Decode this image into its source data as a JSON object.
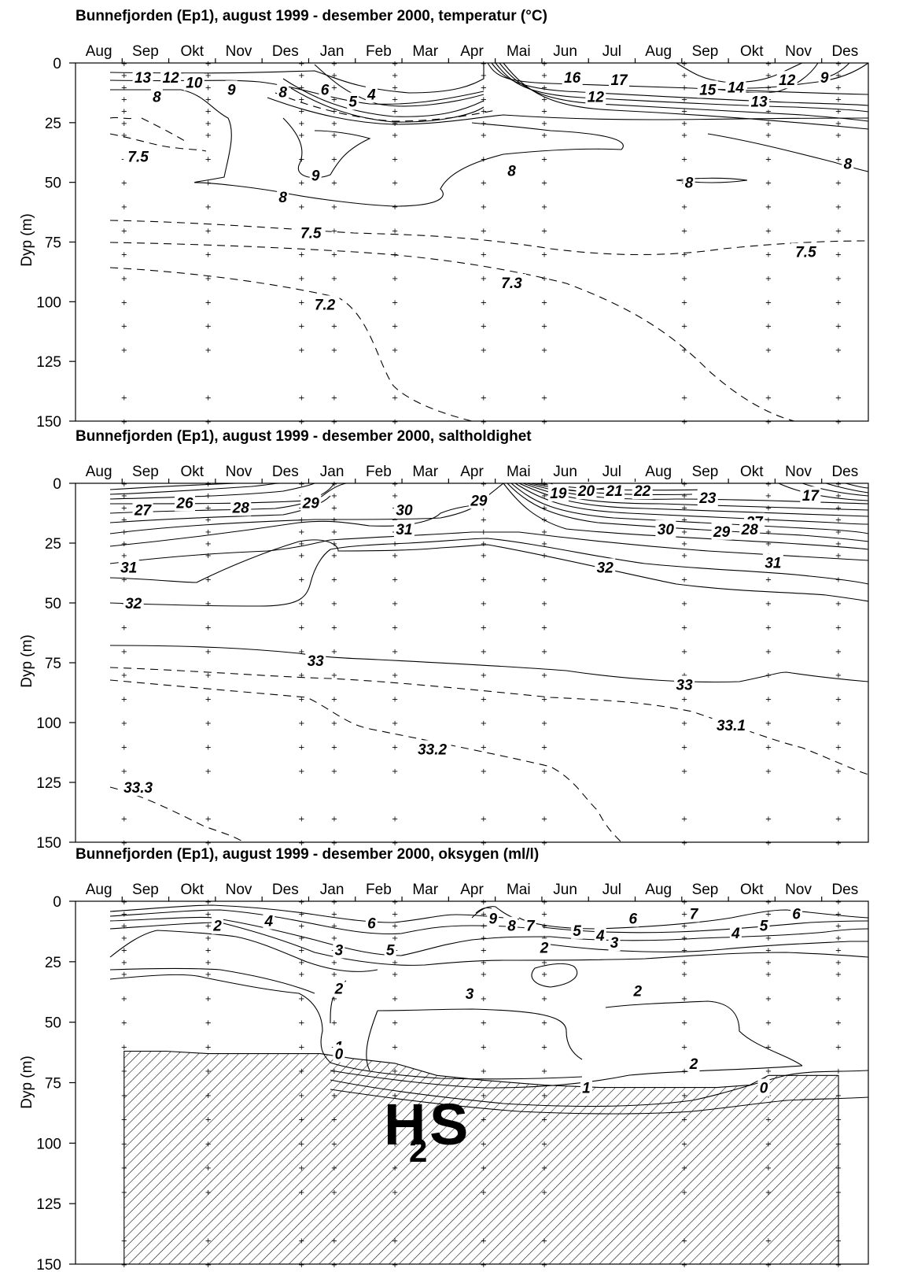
{
  "chart_data": [
    {
      "type": "contour",
      "title": "Bunnefjorden (Ep1), august 1999 - desember 2000, temperatur (°C)",
      "ylabel": "Dyp (m)",
      "ylim": [
        0,
        150
      ],
      "y_inverted": true,
      "yticks": [
        "0",
        "25",
        "50",
        "75",
        "100",
        "125",
        "150"
      ],
      "months": [
        "Aug",
        "Sep",
        "Okt",
        "Nov",
        "Des",
        "Jan",
        "Feb",
        "Mar",
        "Apr",
        "Mai",
        "Jun",
        "Jul",
        "Aug",
        "Sep",
        "Okt",
        "Nov",
        "Des"
      ],
      "sampling_months": [
        0.3,
        2.1,
        4.1,
        4.8,
        6.1,
        8.0,
        9.3,
        12.3,
        14.1,
        15.6
      ],
      "sampling_depths": [
        0,
        5,
        10,
        15,
        20,
        25,
        30,
        40,
        50,
        60,
        70,
        80,
        90,
        100,
        110,
        120,
        140,
        150
      ],
      "contour_labels": [
        {
          "text": "13",
          "month": 0.7,
          "depth": 6
        },
        {
          "text": "12",
          "month": 1.3,
          "depth": 6
        },
        {
          "text": "10",
          "month": 1.8,
          "depth": 8
        },
        {
          "text": "8",
          "month": 1.0,
          "depth": 14
        },
        {
          "text": "9",
          "month": 2.6,
          "depth": 11
        },
        {
          "text": "8",
          "month": 3.7,
          "depth": 12
        },
        {
          "text": "6",
          "month": 4.6,
          "depth": 11
        },
        {
          "text": "5",
          "month": 5.2,
          "depth": 16
        },
        {
          "text": "4",
          "month": 5.6,
          "depth": 13
        },
        {
          "text": "16",
          "month": 9.9,
          "depth": 6
        },
        {
          "text": "17",
          "month": 10.9,
          "depth": 7
        },
        {
          "text": "12",
          "month": 10.4,
          "depth": 14
        },
        {
          "text": "15",
          "month": 12.8,
          "depth": 11
        },
        {
          "text": "14",
          "month": 13.4,
          "depth": 10
        },
        {
          "text": "13",
          "month": 13.9,
          "depth": 16
        },
        {
          "text": "12",
          "month": 14.5,
          "depth": 7
        },
        {
          "text": "9",
          "month": 15.3,
          "depth": 6
        },
        {
          "text": "7.5",
          "month": 0.6,
          "depth": 39
        },
        {
          "text": "9",
          "month": 4.4,
          "depth": 47
        },
        {
          "text": "8",
          "month": 3.7,
          "depth": 56
        },
        {
          "text": "8",
          "month": 8.6,
          "depth": 45
        },
        {
          "text": "8",
          "month": 12.4,
          "depth": 50
        },
        {
          "text": "8",
          "month": 15.8,
          "depth": 42
        },
        {
          "text": "7.5",
          "month": 4.3,
          "depth": 71
        },
        {
          "text": "7.5",
          "month": 14.9,
          "depth": 79
        },
        {
          "text": "7.3",
          "month": 8.6,
          "depth": 92
        },
        {
          "text": "7.2",
          "month": 4.6,
          "depth": 101
        }
      ]
    },
    {
      "type": "contour",
      "title": "Bunnefjorden (Ep1), august 1999 - desember 2000, saltholdighet",
      "ylabel": "Dyp (m)",
      "ylim": [
        0,
        150
      ],
      "y_inverted": true,
      "yticks": [
        "0",
        "25",
        "50",
        "75",
        "100",
        "125",
        "150"
      ],
      "months": [
        "Aug",
        "Sep",
        "Okt",
        "Nov",
        "Des",
        "Jan",
        "Feb",
        "Mar",
        "Apr",
        "Mai",
        "Jun",
        "Jul",
        "Aug",
        "Sep",
        "Okt",
        "Nov",
        "Des"
      ],
      "contour_labels": [
        {
          "text": "27",
          "month": 0.7,
          "depth": 11
        },
        {
          "text": "26",
          "month": 1.6,
          "depth": 8
        },
        {
          "text": "28",
          "month": 2.8,
          "depth": 10
        },
        {
          "text": "29",
          "month": 4.3,
          "depth": 8
        },
        {
          "text": "30",
          "month": 6.3,
          "depth": 11
        },
        {
          "text": "29",
          "month": 7.9,
          "depth": 7
        },
        {
          "text": "31",
          "month": 6.3,
          "depth": 19
        },
        {
          "text": "19",
          "month": 9.6,
          "depth": 4
        },
        {
          "text": "20",
          "month": 10.2,
          "depth": 3
        },
        {
          "text": "21",
          "month": 10.8,
          "depth": 3
        },
        {
          "text": "22",
          "month": 11.4,
          "depth": 3
        },
        {
          "text": "23",
          "month": 12.8,
          "depth": 6
        },
        {
          "text": "17",
          "month": 15.0,
          "depth": 5
        },
        {
          "text": "30",
          "month": 11.9,
          "depth": 19
        },
        {
          "text": "29",
          "month": 13.1,
          "depth": 20
        },
        {
          "text": "27",
          "month": 13.8,
          "depth": 16
        },
        {
          "text": "28",
          "month": 13.7,
          "depth": 19
        },
        {
          "text": "31",
          "month": 0.4,
          "depth": 35
        },
        {
          "text": "32",
          "month": 10.6,
          "depth": 35
        },
        {
          "text": "31",
          "month": 14.2,
          "depth": 33
        },
        {
          "text": "32",
          "month": 0.5,
          "depth": 50
        },
        {
          "text": "33",
          "month": 4.4,
          "depth": 74
        },
        {
          "text": "33",
          "month": 12.3,
          "depth": 84
        },
        {
          "text": "33.1",
          "month": 13.3,
          "depth": 101
        },
        {
          "text": "33.2",
          "month": 6.9,
          "depth": 111
        },
        {
          "text": "33.3",
          "month": 0.6,
          "depth": 127
        }
      ]
    },
    {
      "type": "contour",
      "title": "Bunnefjorden (Ep1), august 1999 - desember 2000, oksygen (ml/l)",
      "ylabel": "Dyp (m)",
      "ylim": [
        0,
        150
      ],
      "y_inverted": true,
      "yticks": [
        "0",
        "25",
        "50",
        "75",
        "100",
        "125",
        "150"
      ],
      "months": [
        "Aug",
        "Sep",
        "Okt",
        "Nov",
        "Des",
        "Jan",
        "Feb",
        "Mar",
        "Apr",
        "Mai",
        "Jun",
        "Jul",
        "Aug",
        "Sep",
        "Okt",
        "Nov",
        "Des"
      ],
      "contour_labels": [
        {
          "text": "2",
          "month": 2.3,
          "depth": 10
        },
        {
          "text": "4",
          "month": 3.4,
          "depth": 8
        },
        {
          "text": "6",
          "month": 5.6,
          "depth": 9
        },
        {
          "text": "9",
          "month": 8.2,
          "depth": 7
        },
        {
          "text": "8",
          "month": 8.6,
          "depth": 10
        },
        {
          "text": "7",
          "month": 9.0,
          "depth": 10
        },
        {
          "text": "6",
          "month": 11.2,
          "depth": 7
        },
        {
          "text": "7",
          "month": 12.5,
          "depth": 5
        },
        {
          "text": "6",
          "month": 14.7,
          "depth": 5
        },
        {
          "text": "5",
          "month": 10.0,
          "depth": 12
        },
        {
          "text": "4",
          "month": 10.5,
          "depth": 14
        },
        {
          "text": "3",
          "month": 10.8,
          "depth": 17
        },
        {
          "text": "4",
          "month": 13.4,
          "depth": 13
        },
        {
          "text": "5",
          "month": 14.0,
          "depth": 10
        },
        {
          "text": "3",
          "month": 4.9,
          "depth": 20
        },
        {
          "text": "5",
          "month": 6.0,
          "depth": 20
        },
        {
          "text": "2",
          "month": 9.3,
          "depth": 19
        },
        {
          "text": "3",
          "month": 7.7,
          "depth": 38
        },
        {
          "text": "2",
          "month": 4.9,
          "depth": 36
        },
        {
          "text": "2",
          "month": 11.3,
          "depth": 37
        },
        {
          "text": "1",
          "month": 4.9,
          "depth": 60
        },
        {
          "text": "0",
          "month": 4.9,
          "depth": 63
        },
        {
          "text": "2",
          "month": 12.5,
          "depth": 67
        },
        {
          "text": "1",
          "month": 10.2,
          "depth": 77
        },
        {
          "text": "0",
          "month": 14.0,
          "depth": 77
        }
      ],
      "anoxic_zone": {
        "label_main": "H",
        "label_sub": "2",
        "label_end": "S",
        "top_depth_months": [
          0.3,
          1.2,
          2.1,
          3.0,
          4.1,
          4.5,
          5.2,
          6.1,
          7.0,
          8.0,
          9.3,
          10.5,
          12.3,
          13.0,
          13.7,
          14.1,
          15.6
        ],
        "top_depths": [
          62,
          62,
          63,
          63,
          63,
          63,
          65,
          67,
          72,
          74,
          76,
          77,
          77,
          77,
          76,
          72,
          72
        ]
      }
    }
  ]
}
